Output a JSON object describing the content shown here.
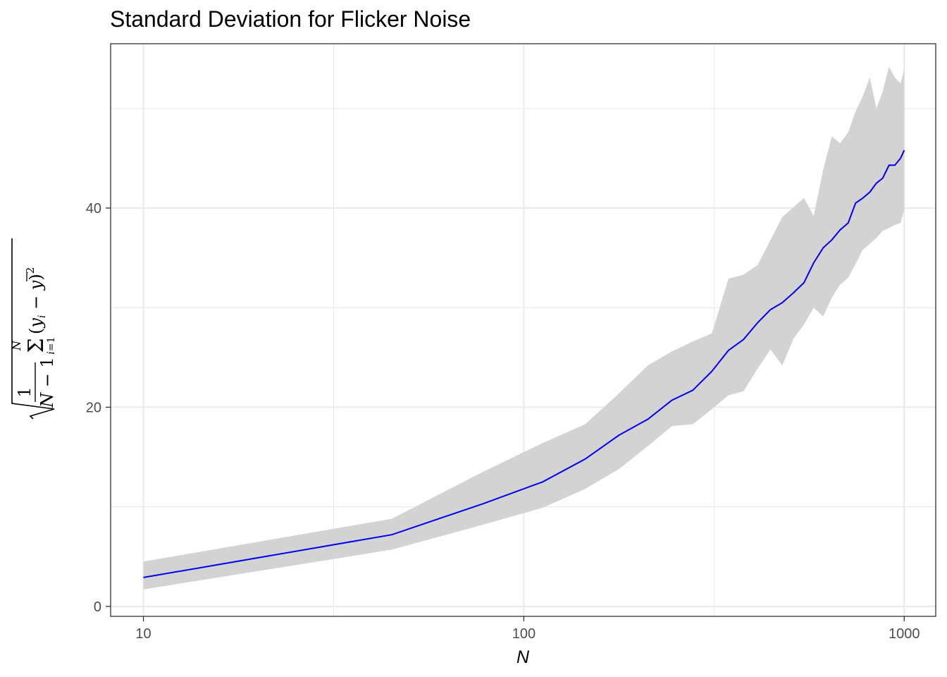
{
  "chart_data": {
    "type": "line",
    "title": "Standard Deviation for Flicker Noise",
    "xlabel": "N",
    "ylabel": "sqrt( 1/(N − 1) · Σ_{i=1}^{N} (y_i − ȳ)² )",
    "x_scale": "log10",
    "xlim": [
      8.2,
      1210
    ],
    "ylim": [
      -1.0,
      56.5
    ],
    "x_ticks": [
      10,
      100,
      1000
    ],
    "x_tick_labels": [
      "10",
      "100",
      "1000"
    ],
    "y_ticks": [
      0,
      20,
      40
    ],
    "y_tick_labels": [
      "0",
      "20",
      "40"
    ],
    "grid": true,
    "legend": "none",
    "colors": {
      "line": "#0000ee",
      "ribbon": "#d3d3d3",
      "grid": "#ebebeb",
      "panel_border": "#333333"
    },
    "series": [
      {
        "x": [
          10,
          45,
          78,
          112,
          145,
          178,
          212,
          245,
          278,
          312,
          345,
          378,
          412,
          445,
          478,
          512,
          545,
          578,
          612,
          645,
          678,
          712,
          745,
          778,
          812,
          845,
          878,
          912,
          945,
          978,
          1000
        ],
        "y": [
          2.9,
          7.2,
          10.3,
          12.5,
          14.8,
          17.2,
          18.8,
          20.7,
          21.7,
          23.6,
          25.7,
          26.8,
          28.5,
          29.8,
          30.5,
          31.5,
          32.5,
          34.5,
          36.0,
          36.8,
          37.8,
          38.5,
          40.5,
          41.0,
          41.6,
          42.5,
          43.0,
          44.3,
          44.3,
          45.0,
          45.8
        ],
        "lower": [
          1.7,
          5.7,
          8.2,
          9.9,
          11.8,
          13.8,
          16.1,
          18.1,
          18.3,
          19.8,
          21.2,
          21.6,
          23.9,
          25.8,
          24.2,
          26.9,
          28.3,
          30.0,
          29.1,
          31.0,
          32.3,
          33.0,
          34.4,
          35.8,
          36.4,
          37.0,
          37.7,
          38.0,
          38.3,
          38.5,
          39.8
        ],
        "upper": [
          4.5,
          8.8,
          13.5,
          16.4,
          18.3,
          21.4,
          24.2,
          25.6,
          26.6,
          27.4,
          32.9,
          33.3,
          34.3,
          36.8,
          39.1,
          40.1,
          41.0,
          39.2,
          43.8,
          47.2,
          46.5,
          47.6,
          49.7,
          51.2,
          53.1,
          50.0,
          51.7,
          54.2,
          53.1,
          52.5,
          54.0
        ]
      }
    ]
  }
}
